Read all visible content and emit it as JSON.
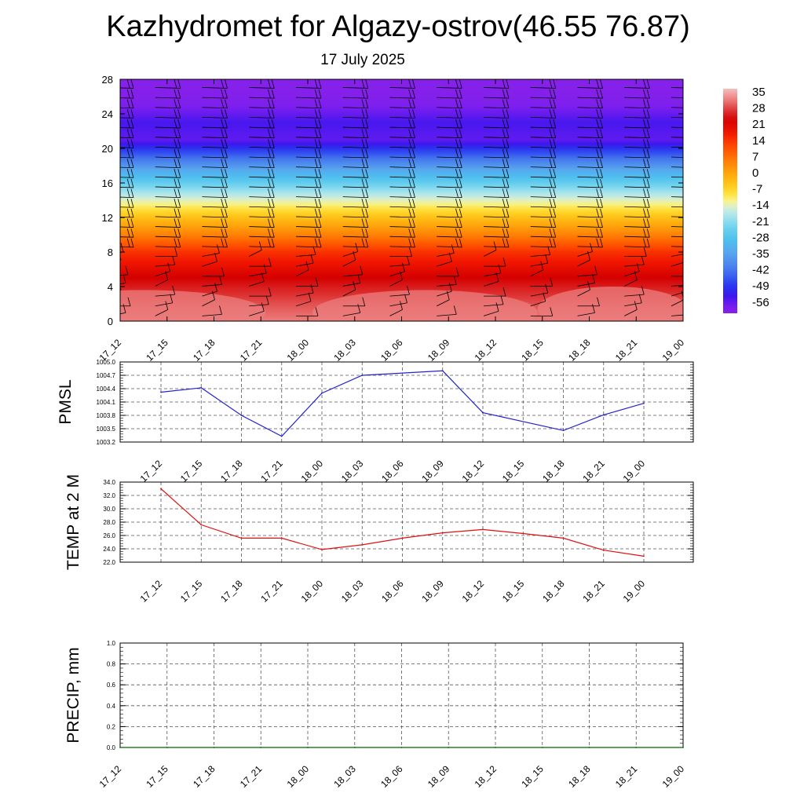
{
  "page": {
    "title": "Kazhydromet for Algazy-ostrov(46.55 76.87)",
    "subtitle": "17 July 2025"
  },
  "colors": {
    "pmsl_line": "#2222cc",
    "temp_line": "#dd1111",
    "precip_line": "#006600",
    "wind_barb": "#000000",
    "grid": "#555555"
  },
  "chart_data": [
    {
      "type": "heatmap",
      "name": "Temperature cross-section with wind barbs",
      "x_ticks": [
        "17_12",
        "17_15",
        "17_18",
        "17_21",
        "18_00",
        "18_03",
        "18_06",
        "18_09",
        "18_12",
        "18_15",
        "18_18",
        "18_21",
        "19_00"
      ],
      "y_ticks": [
        0,
        4,
        8,
        12,
        16,
        20,
        24,
        28
      ],
      "ylim": [
        0,
        28
      ],
      "colorbar_labels": [
        "35",
        "28",
        "21",
        "14",
        "7",
        "0",
        "-7",
        "-14",
        "-21",
        "-28",
        "-35",
        "-42",
        "-49",
        "-56"
      ],
      "colorbar_range": [
        -63,
        38
      ],
      "temperature_profile": [
        {
          "level": 0,
          "value": 33
        },
        {
          "level": 2,
          "value": 30
        },
        {
          "level": 5,
          "value": 24
        },
        {
          "level": 8,
          "value": 15
        },
        {
          "level": 10,
          "value": 5
        },
        {
          "level": 12,
          "value": -4
        },
        {
          "level": 13.5,
          "value": -12
        },
        {
          "level": 15,
          "value": -20
        },
        {
          "level": 17,
          "value": -32
        },
        {
          "level": 19,
          "value": -45
        },
        {
          "level": 21,
          "value": -58
        },
        {
          "level": 23,
          "value": -56
        },
        {
          "level": 25.5,
          "value": -62
        },
        {
          "level": 28,
          "value": -63
        }
      ],
      "wind_barbs_shown": true
    },
    {
      "type": "line",
      "ylabel": "PMSL",
      "x_ticks": [
        "17_12",
        "17_15",
        "17_18",
        "17_21",
        "18_00",
        "18_03",
        "18_06",
        "18_09",
        "18_12",
        "18_15",
        "18_18",
        "18_21",
        "19_00"
      ],
      "y_ticks": [
        "1003.2",
        "1003.5",
        "1003.8",
        "1004.1",
        "1004.4",
        "1004.7",
        "1005.0"
      ],
      "ylim": [
        1003.2,
        1005.0
      ],
      "x_index": [
        0,
        1,
        2,
        3,
        4,
        5,
        7,
        8,
        10,
        11,
        12
      ],
      "values": [
        1004.32,
        1004.42,
        1003.8,
        1003.33,
        1004.3,
        1004.7,
        1004.8,
        1003.86,
        1003.46,
        1003.81,
        1004.07
      ],
      "grid": true
    },
    {
      "type": "line",
      "ylabel": "TEMP at 2 M",
      "x_ticks": [
        "17_12",
        "17_15",
        "17_18",
        "17_21",
        "18_00",
        "18_03",
        "18_06",
        "18_09",
        "18_12",
        "18_15",
        "18_18",
        "18_21",
        "19_00"
      ],
      "y_ticks": [
        "22.0",
        "24.0",
        "26.0",
        "28.0",
        "30.0",
        "32.0",
        "34.0"
      ],
      "ylim": [
        22.0,
        34.0
      ],
      "x_index": [
        0,
        1,
        2,
        3,
        4,
        5,
        6,
        7,
        8,
        9,
        10,
        11,
        12
      ],
      "values": [
        33.0,
        27.6,
        25.6,
        25.6,
        23.9,
        24.6,
        25.6,
        26.4,
        26.9,
        26.3,
        25.6,
        23.8,
        22.9
      ],
      "grid": true
    },
    {
      "type": "line",
      "ylabel": "PRECIP, mm",
      "x_ticks": [
        "17_12",
        "17_15",
        "17_18",
        "17_21",
        "18_00",
        "18_03",
        "18_06",
        "18_09",
        "18_12",
        "18_15",
        "18_18",
        "18_21",
        "19_00"
      ],
      "y_ticks": [
        "0.0",
        "0.2",
        "0.4",
        "0.6",
        "0.8",
        "1.0"
      ],
      "ylim": [
        0.0,
        1.0
      ],
      "x_index": [
        0,
        1,
        2,
        3,
        4,
        5,
        6,
        7,
        8,
        9,
        10,
        11,
        12
      ],
      "values": [
        0,
        0,
        0,
        0,
        0,
        0,
        0,
        0,
        0,
        0,
        0,
        0,
        0
      ],
      "grid": true
    }
  ]
}
